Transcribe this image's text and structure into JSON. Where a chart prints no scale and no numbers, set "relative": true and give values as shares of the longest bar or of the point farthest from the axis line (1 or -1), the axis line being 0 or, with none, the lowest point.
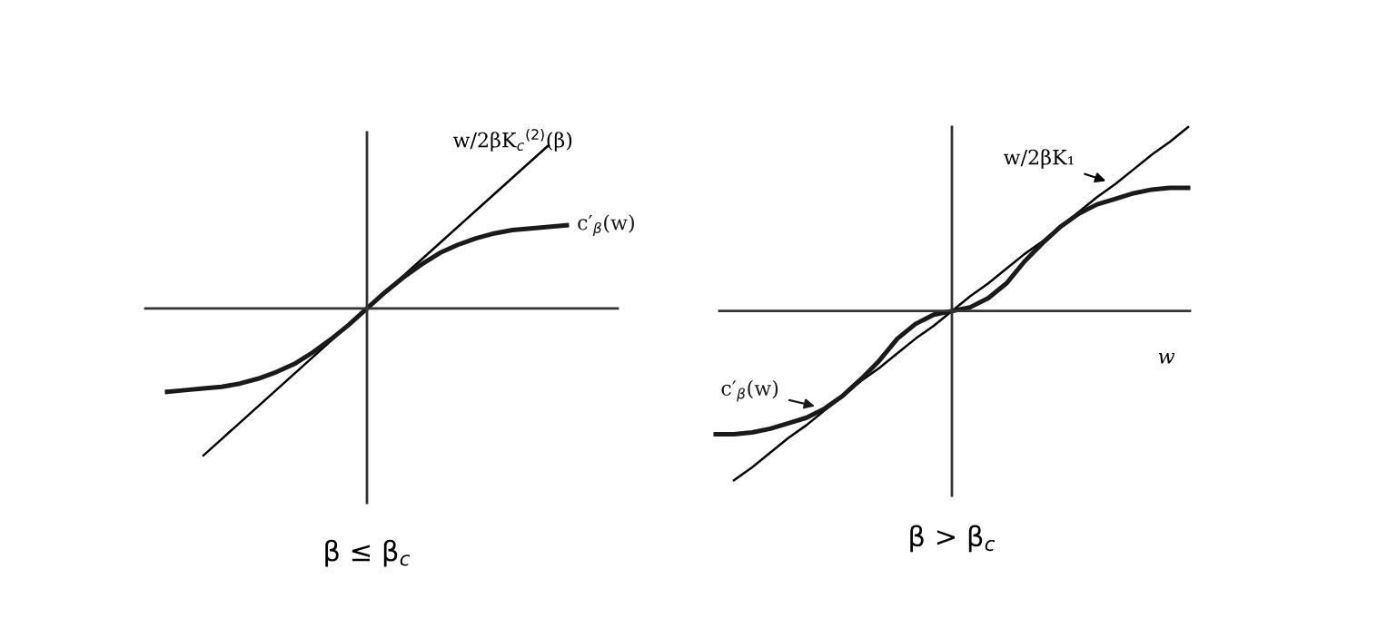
{
  "chart_data": [
    {
      "type": "line",
      "relative": true,
      "title": "β ≤ β$_{c}$",
      "categories": [
        null,
        null,
        null,
        null,
        null,
        null,
        null,
        null,
        null,
        null,
        null,
        null,
        null,
        null,
        null,
        null,
        null,
        null,
        null,
        null,
        null,
        null,
        null
      ],
      "series": [
        {
          "name": "w/2βK$_{c}$$^{(2)}$(β)",
          "color": "#000000",
          "values": [
            null,
            null,
            -0.9,
            -0.8,
            -0.7,
            -0.6,
            -0.5,
            -0.4,
            -0.3,
            -0.2,
            -0.1,
            0,
            0.1,
            0.2,
            0.3,
            0.4,
            0.5,
            0.6,
            0.7,
            0.8,
            0.9,
            1.0,
            null
          ]
        },
        {
          "name": "c′$_{β}$(w)",
          "color": "#1a1a1a",
          "values": [
            -0.51,
            -0.5,
            -0.49,
            -0.48,
            -0.46,
            -0.43,
            -0.39,
            -0.34,
            -0.27,
            -0.19,
            -0.1,
            0,
            0.1,
            0.19,
            0.27,
            0.34,
            0.39,
            0.43,
            0.46,
            0.48,
            0.49,
            0.5,
            0.51
          ]
        }
      ]
    },
    {
      "type": "line",
      "relative": true,
      "title": "β > β$_{c}$",
      "xlabel": "w",
      "categories": [
        null,
        null,
        null,
        null,
        null,
        null,
        null,
        null,
        null,
        null,
        null,
        null,
        null,
        null,
        null,
        null,
        null,
        null,
        null,
        null,
        null,
        null,
        null,
        null,
        null,
        null,
        null
      ],
      "series": [
        {
          "name": "w/2βK₁",
          "color": "#000000",
          "values": [
            null,
            -0.92,
            -0.85,
            -0.77,
            -0.69,
            -0.62,
            -0.54,
            -0.46,
            -0.38,
            -0.31,
            -0.23,
            -0.15,
            -0.08,
            0,
            0.08,
            0.15,
            0.23,
            0.31,
            0.38,
            0.46,
            0.54,
            0.62,
            0.69,
            0.77,
            0.85,
            0.92,
            1.0
          ]
        },
        {
          "name": "c′$_{β}$(w)",
          "color": "#1a1a1a",
          "values": [
            -0.67,
            -0.67,
            -0.66,
            -0.64,
            -0.61,
            -0.58,
            -0.53,
            -0.46,
            -0.37,
            -0.27,
            -0.15,
            -0.07,
            -0.02,
            0,
            0.02,
            0.07,
            0.15,
            0.27,
            0.37,
            0.46,
            0.53,
            0.58,
            0.61,
            0.64,
            0.66,
            0.67,
            0.67
          ]
        }
      ]
    }
  ]
}
